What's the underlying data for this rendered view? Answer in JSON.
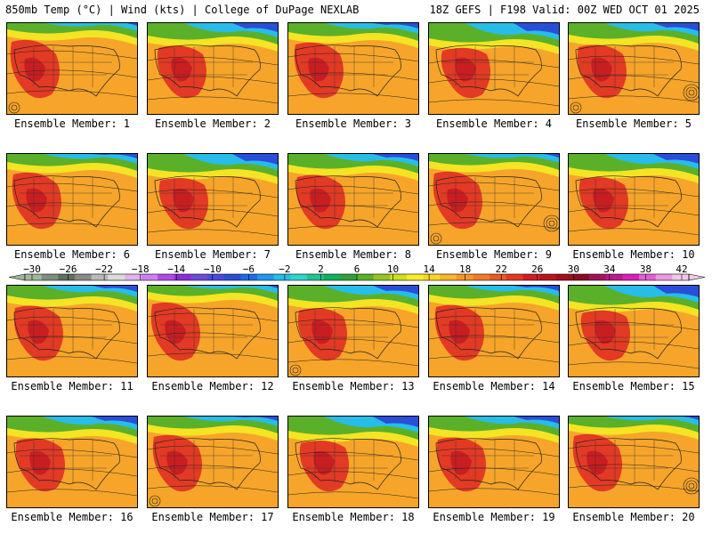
{
  "header": {
    "left_title": "850mb Temp (°C) | Wind (kts) | College of DuPage NEXLAB",
    "right_title": "18Z GEFS | F198 Valid: 00Z WED OCT 01 2025"
  },
  "panels": [
    {
      "label": "Ensemble Member: 1"
    },
    {
      "label": "Ensemble Member: 2"
    },
    {
      "label": "Ensemble Member: 3"
    },
    {
      "label": "Ensemble Member: 4"
    },
    {
      "label": "Ensemble Member: 5"
    },
    {
      "label": "Ensemble Member: 6"
    },
    {
      "label": "Ensemble Member: 7"
    },
    {
      "label": "Ensemble Member: 8"
    },
    {
      "label": "Ensemble Member: 9"
    },
    {
      "label": "Ensemble Member: 10"
    },
    {
      "label": "Ensemble Member: 11"
    },
    {
      "label": "Ensemble Member: 12"
    },
    {
      "label": "Ensemble Member: 13"
    },
    {
      "label": "Ensemble Member: 14"
    },
    {
      "label": "Ensemble Member: 15"
    },
    {
      "label": "Ensemble Member: 16"
    },
    {
      "label": "Ensemble Member: 17"
    },
    {
      "label": "Ensemble Member: 18"
    },
    {
      "label": "Ensemble Member: 19"
    },
    {
      "label": "Ensemble Member: 20"
    }
  ],
  "colorbar": {
    "labels": [
      "−30",
      "−26",
      "−22",
      "−18",
      "−14",
      "−10",
      "−6",
      "−2",
      "2",
      "6",
      "10",
      "14",
      "18",
      "22",
      "26",
      "30",
      "34",
      "38",
      "42"
    ],
    "colors": [
      "#9fb79b",
      "#7f8f7f",
      "#5f6f5f",
      "#8a8a8a",
      "#b9b9b9",
      "#dcdcdc",
      "#e1b4ef",
      "#ce7ff0",
      "#b347e8",
      "#8d2bd8",
      "#6d4ad8",
      "#4a4adf",
      "#2a4ed8",
      "#1e6be6",
      "#1f96f0",
      "#27bde8",
      "#2fd6c8",
      "#1fc48e",
      "#11b05a",
      "#2fa33a",
      "#5bb02a",
      "#95c524",
      "#cde21f",
      "#f4ef26",
      "#fbd524",
      "#fbb52a",
      "#f69629",
      "#ef7a28",
      "#e85a26",
      "#e23a24",
      "#d01e22",
      "#b81620",
      "#a0101c",
      "#8a0c22",
      "#a01458",
      "#b8188a",
      "#d820b8",
      "#e25fd4",
      "#ea9ae0",
      "#f2c8ea"
    ]
  },
  "temperature_scale": {
    "min": -30,
    "max": 42,
    "unit": "°C"
  }
}
